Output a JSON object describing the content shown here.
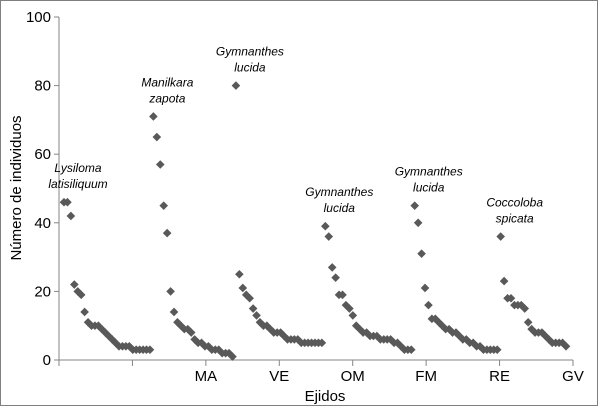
{
  "chart_data": {
    "type": "scatter",
    "xlabel": "Ejidos",
    "ylabel": "Número de individuos",
    "ylim": [
      0,
      100
    ],
    "yticks": [
      "0",
      "20",
      "40",
      "60",
      "80",
      "100"
    ],
    "grid": false,
    "marker": "diamond",
    "color": "#595959",
    "groups": [
      {
        "label": "",
        "values": [
          46,
          46,
          42,
          22,
          20,
          19,
          14,
          11,
          10,
          10,
          10,
          9,
          8,
          7,
          6,
          5,
          4,
          4,
          4,
          4,
          3,
          3,
          3,
          3,
          3,
          3
        ]
      },
      {
        "label": "MA",
        "values": [
          71,
          65,
          57,
          45,
          37,
          20,
          14,
          11,
          10,
          9,
          9,
          8,
          6,
          5,
          5,
          4,
          4,
          3,
          3,
          3,
          2,
          2,
          2,
          1
        ]
      },
      {
        "label": "VE",
        "values": [
          80,
          25,
          21,
          19,
          18,
          15,
          13,
          11,
          10,
          10,
          9,
          8,
          8,
          8,
          7,
          6,
          6,
          6,
          6,
          5,
          5,
          5,
          5,
          5,
          5,
          5
        ]
      },
      {
        "label": "OM",
        "values": [
          39,
          36,
          27,
          24,
          19,
          19,
          16,
          15,
          13,
          10,
          9,
          8,
          8,
          7,
          7,
          7,
          6,
          6,
          6,
          6,
          5,
          5,
          4,
          3,
          3,
          3
        ]
      },
      {
        "label": "FM",
        "values": [
          45,
          40,
          31,
          21,
          16,
          12,
          12,
          11,
          10,
          9,
          9,
          8,
          8,
          7,
          6,
          6,
          5,
          5,
          4,
          4,
          3,
          3,
          3,
          3,
          3
        ]
      },
      {
        "label": "RE",
        "values": [
          36,
          23,
          18,
          18,
          16,
          16,
          16,
          15,
          11,
          9,
          8,
          8,
          8,
          7,
          6,
          5,
          5,
          5,
          5,
          4
        ]
      },
      {
        "label": "GV",
        "values": []
      }
    ],
    "annotations": [
      {
        "lines": [
          "Lysiloma",
          "latisiliquum"
        ]
      },
      {
        "lines": [
          "Manilkara",
          "zapota"
        ]
      },
      {
        "lines": [
          "Gymnanthes",
          "lucida"
        ]
      },
      {
        "lines": [
          "Gymnanthes",
          "lucida"
        ]
      },
      {
        "lines": [
          "Gymnanthes",
          "lucida"
        ]
      },
      {
        "lines": [
          "Coccoloba",
          "spicata"
        ]
      }
    ]
  }
}
